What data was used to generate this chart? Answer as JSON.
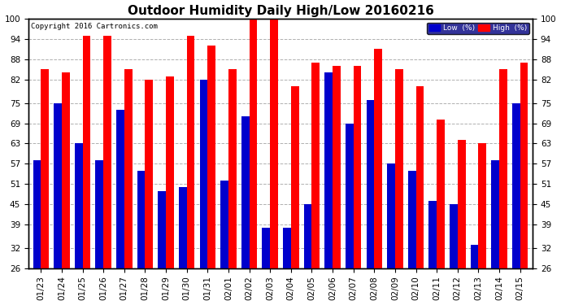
{
  "title": "Outdoor Humidity Daily High/Low 20160216",
  "copyright": "Copyright 2016 Cartronics.com",
  "dates": [
    "01/23",
    "01/24",
    "01/25",
    "01/26",
    "01/27",
    "01/28",
    "01/29",
    "01/30",
    "01/31",
    "02/01",
    "02/02",
    "02/03",
    "02/04",
    "02/05",
    "02/06",
    "02/07",
    "02/08",
    "02/09",
    "02/10",
    "02/11",
    "02/12",
    "02/13",
    "02/14",
    "02/15"
  ],
  "high": [
    85,
    84,
    95,
    95,
    85,
    82,
    83,
    95,
    92,
    85,
    100,
    100,
    80,
    87,
    86,
    86,
    91,
    85,
    80,
    70,
    64,
    63,
    85,
    87
  ],
  "low": [
    58,
    75,
    63,
    58,
    73,
    55,
    49,
    50,
    82,
    52,
    71,
    38,
    38,
    45,
    84,
    69,
    76,
    57,
    55,
    46,
    45,
    33,
    58,
    75
  ],
  "high_color": "#ff0000",
  "low_color": "#0000cc",
  "background_color": "#ffffff",
  "plot_bg_color": "#ffffff",
  "grid_color": "#b0b0b0",
  "ylim": [
    26,
    100
  ],
  "ybase": 26,
  "yticks": [
    26,
    32,
    39,
    45,
    51,
    57,
    63,
    69,
    75,
    82,
    88,
    94,
    100
  ],
  "legend_low_label": "Low  (%)",
  "legend_high_label": "High  (%)",
  "title_fontsize": 11,
  "tick_fontsize": 7.5,
  "bar_width": 0.38,
  "figwidth": 6.9,
  "figheight": 3.75,
  "dpi": 100
}
